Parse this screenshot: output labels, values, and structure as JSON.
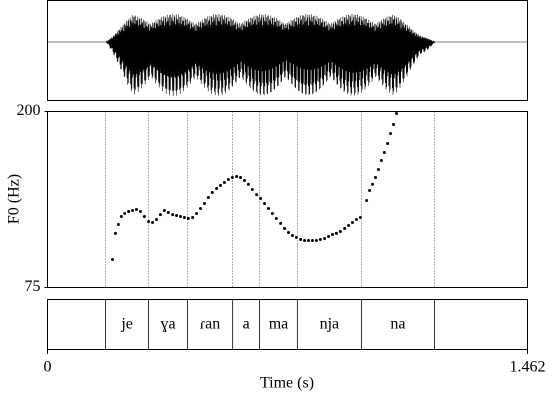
{
  "chart_data": {
    "type": "scatter",
    "xlabel": "Time (s)",
    "ylabel": "F0 (Hz)",
    "xlim": [
      0,
      1.462
    ],
    "xticks": [
      0,
      1.462
    ],
    "ylim": [
      75,
      200
    ],
    "yticks": [
      75,
      200
    ],
    "color": "#000000",
    "boundaries": [
      0.177,
      0.308,
      0.426,
      0.564,
      0.646,
      0.761,
      0.956,
      1.179
    ],
    "segments": [
      "je",
      "ɣa",
      "ɾan",
      "a",
      "ma",
      "nja",
      "na"
    ],
    "x": [
      0.198,
      0.207,
      0.216,
      0.225,
      0.235,
      0.247,
      0.259,
      0.271,
      0.283,
      0.295,
      0.308,
      0.32,
      0.332,
      0.344,
      0.356,
      0.368,
      0.381,
      0.393,
      0.405,
      0.417,
      0.429,
      0.442,
      0.454,
      0.466,
      0.478,
      0.49,
      0.502,
      0.515,
      0.527,
      0.539,
      0.551,
      0.563,
      0.576,
      0.588,
      0.6,
      0.612,
      0.624,
      0.637,
      0.649,
      0.661,
      0.673,
      0.685,
      0.697,
      0.71,
      0.722,
      0.734,
      0.746,
      0.758,
      0.771,
      0.783,
      0.795,
      0.807,
      0.819,
      0.831,
      0.844,
      0.856,
      0.868,
      0.88,
      0.892,
      0.905,
      0.917,
      0.929,
      0.941,
      0.953,
      0.972,
      0.981,
      0.99,
      0.999,
      1.008,
      1.017,
      1.026,
      1.036,
      1.045,
      1.054,
      1.063
    ],
    "values": [
      94.9,
      113.4,
      119.7,
      125.4,
      127.6,
      129.0,
      129.7,
      130.4,
      129.0,
      125.4,
      121.9,
      121.2,
      123.3,
      126.8,
      129.7,
      128.3,
      126.8,
      126.1,
      125.4,
      124.7,
      124.0,
      124.7,
      127.6,
      131.1,
      134.7,
      138.9,
      142.5,
      145.3,
      147.4,
      149.6,
      151.7,
      153.1,
      153.8,
      153.1,
      151.0,
      148.2,
      144.6,
      141.0,
      138.2,
      134.7,
      131.1,
      127.6,
      124.0,
      120.5,
      116.9,
      114.1,
      111.9,
      110.5,
      109.1,
      108.4,
      108.4,
      108.4,
      108.4,
      109.1,
      109.8,
      111.2,
      112.6,
      113.4,
      114.8,
      116.9,
      119.0,
      121.2,
      123.3,
      124.7,
      136.8,
      143.9,
      148.2,
      153.1,
      158.8,
      165.2,
      170.9,
      177.3,
      184.4,
      190.8,
      198.6
    ]
  }
}
